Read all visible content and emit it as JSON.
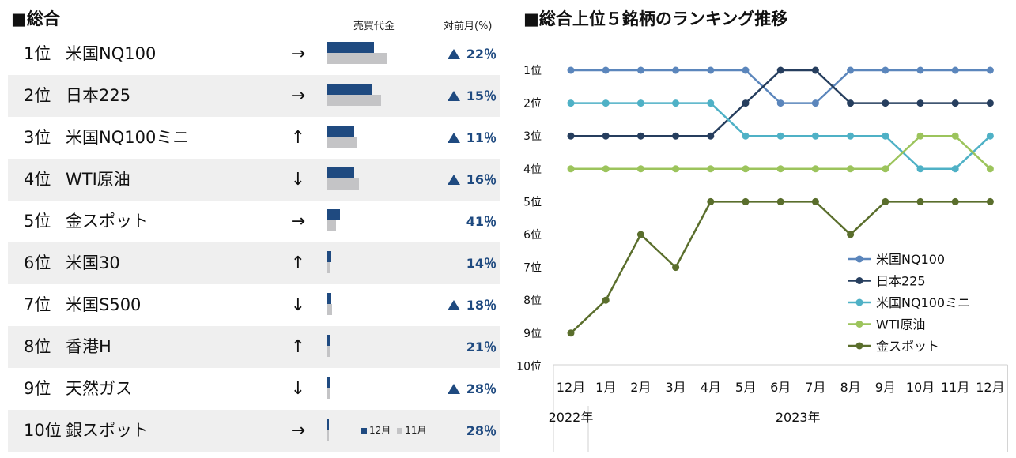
{
  "left_panel": {
    "title": "■総合",
    "col_volume": "売買代金",
    "col_change": "対前月(%)",
    "legend": {
      "current": "12月",
      "previous": "11月",
      "current_color": "#1f4a80",
      "previous_color": "#c4c4c6"
    },
    "rows": [
      {
        "rank": "1位",
        "name": "米国NQ100",
        "arrow": "→",
        "cur": 59,
        "prev": 76,
        "up": true,
        "change": "22％"
      },
      {
        "rank": "2位",
        "name": "日本225",
        "arrow": "→",
        "cur": 57,
        "prev": 68,
        "up": true,
        "change": "15％"
      },
      {
        "rank": "3位",
        "name": "米国NQ100ミニ",
        "arrow": "↑",
        "cur": 34,
        "prev": 38,
        "up": true,
        "change": "11％"
      },
      {
        "rank": "4位",
        "name": "WTI原油",
        "arrow": "↓",
        "cur": 34,
        "prev": 40,
        "up": true,
        "change": "16％"
      },
      {
        "rank": "5位",
        "name": "金スポット",
        "arrow": "→",
        "cur": 16,
        "prev": 11,
        "up": false,
        "change": "41％"
      },
      {
        "rank": "6位",
        "name": "米国30",
        "arrow": "↑",
        "cur": 5,
        "prev": 4,
        "up": false,
        "change": "14％"
      },
      {
        "rank": "7位",
        "name": "米国S500",
        "arrow": "↓",
        "cur": 5,
        "prev": 6,
        "up": true,
        "change": "18％"
      },
      {
        "rank": "8位",
        "name": "香港H",
        "arrow": "↑",
        "cur": 4,
        "prev": 3,
        "up": false,
        "change": "21％"
      },
      {
        "rank": "9位",
        "name": "天然ガス",
        "arrow": "↓",
        "cur": 3,
        "prev": 4,
        "up": true,
        "change": "28％"
      },
      {
        "rank": "10位",
        "name": "銀スポット",
        "arrow": "→",
        "cur": 2,
        "prev": 2,
        "up": false,
        "change": "28％"
      }
    ]
  },
  "chart_data": {
    "type": "line",
    "title": "■総合上位５銘柄のランキング推移",
    "categories": [
      "12月",
      "1月",
      "2月",
      "3月",
      "4月",
      "5月",
      "6月",
      "7月",
      "8月",
      "9月",
      "10月",
      "11月",
      "12月"
    ],
    "year_labels": [
      "2022年",
      "2023年"
    ],
    "y_tick_labels": [
      "1位",
      "2位",
      "3位",
      "4位",
      "5位",
      "6位",
      "7位",
      "8位",
      "9位",
      "10位"
    ],
    "ylim": [
      1,
      10
    ],
    "y_inverted": true,
    "legend_position": "right",
    "series": [
      {
        "name": "米国NQ100",
        "color": "#5b86bc",
        "values": [
          1,
          1,
          1,
          1,
          1,
          1,
          2,
          2,
          1,
          1,
          1,
          1,
          1
        ]
      },
      {
        "name": "日本225",
        "color": "#263e5e",
        "values": [
          3,
          3,
          3,
          3,
          3,
          2,
          1,
          1,
          2,
          2,
          2,
          2,
          2
        ]
      },
      {
        "name": "米国NQ100ミニ",
        "color": "#4fb1c6",
        "values": [
          2,
          2,
          2,
          2,
          2,
          3,
          3,
          3,
          3,
          3,
          4,
          4,
          3
        ]
      },
      {
        "name": "WTI原油",
        "color": "#9cc45c",
        "values": [
          4,
          4,
          4,
          4,
          4,
          4,
          4,
          4,
          4,
          4,
          3,
          3,
          4
        ]
      },
      {
        "name": "金スポット",
        "color": "#5a6e2c",
        "values": [
          9,
          8,
          6,
          7,
          5,
          5,
          5,
          5,
          6,
          5,
          5,
          5,
          5
        ]
      }
    ]
  }
}
